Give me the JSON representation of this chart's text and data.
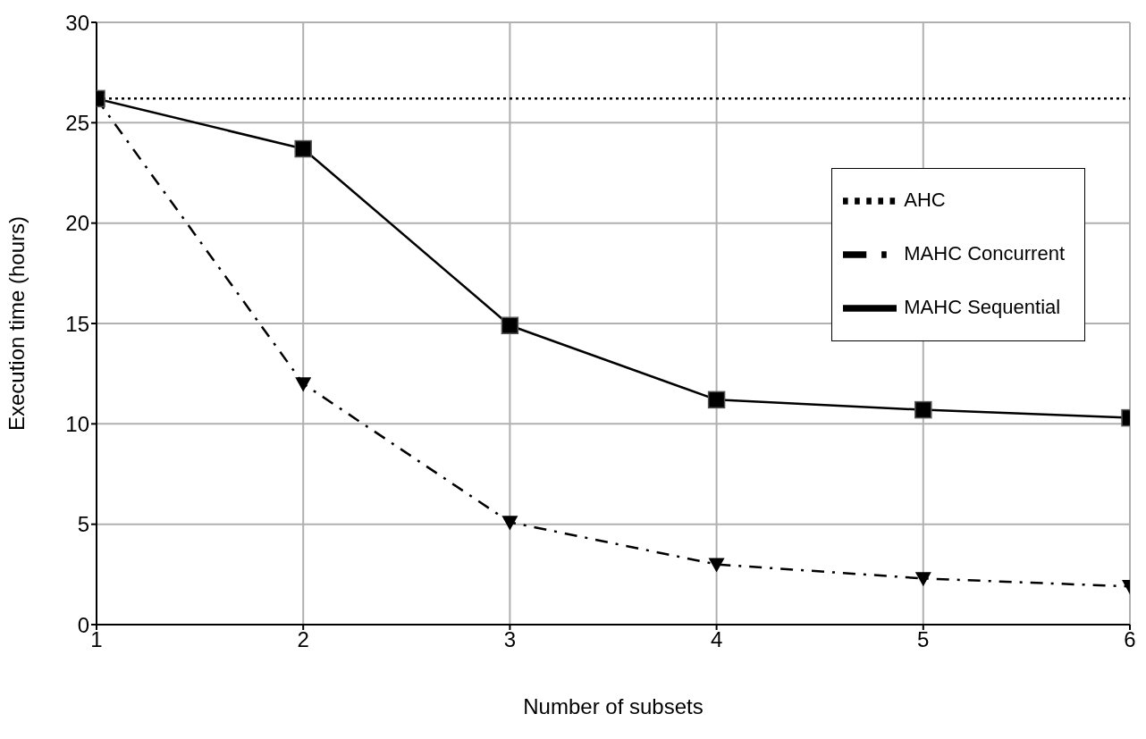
{
  "chart_data": {
    "type": "line",
    "xlabel": "Number of subsets",
    "ylabel": "Execution time (hours)",
    "x": [
      1,
      2,
      3,
      4,
      5,
      6
    ],
    "series": [
      {
        "name": "MAHC Sequential",
        "color": "#000000",
        "marker": "square",
        "line_style": "solid",
        "values": [
          26.2,
          23.7,
          14.9,
          11.2,
          10.7,
          10.3
        ]
      },
      {
        "name": "MAHC Concurrent",
        "color": "#000000",
        "marker": "triangle",
        "line_style": "dashed",
        "values": [
          26.2,
          12.0,
          5.1,
          3.0,
          2.3,
          1.9
        ]
      },
      {
        "name": "AHC",
        "color": "#000000",
        "marker": "none",
        "line_style": "dotted",
        "values": [
          26.2,
          26.2,
          26.2,
          26.2,
          26.2,
          26.2
        ]
      }
    ],
    "xlim": [
      1,
      6
    ],
    "xticks": [
      1,
      2,
      3,
      4,
      5,
      6
    ],
    "ylim": [
      0,
      30
    ],
    "yticks": [
      0,
      5,
      10,
      15,
      20,
      25,
      30
    ],
    "grid": true,
    "legend": "right"
  }
}
